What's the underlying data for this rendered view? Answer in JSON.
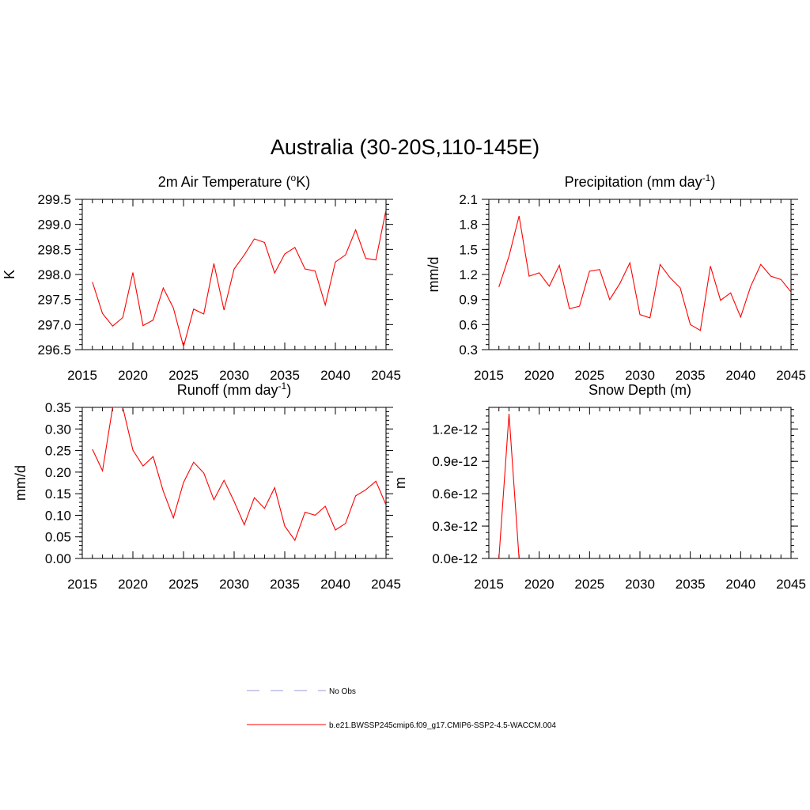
{
  "figure": {
    "title": "Australia (30-20S,110-145E)"
  },
  "colors": {
    "model_line": "#ff0000",
    "obs_line": "#9999dd",
    "axis": "#000000"
  },
  "legend": {
    "placement": "bottom-center",
    "items": [
      {
        "label": "No Obs",
        "style": "dashed",
        "color": "#9999dd"
      },
      {
        "label": "b.e21.BWSSP245cmip6.f09_g17.CMIP6-SSP2-4.5-WACCM.004",
        "style": "solid",
        "color": "#ff0000"
      }
    ]
  },
  "chart_data": [
    {
      "type": "line",
      "title_main": "2m Air Temperature (",
      "title_sup": "o",
      "title_rest": "K)",
      "xlabel": "",
      "ylabel": "K",
      "xlim": [
        2015,
        2045
      ],
      "ylim": [
        296.5,
        299.5
      ],
      "xticks": [
        2015,
        2020,
        2025,
        2030,
        2035,
        2040,
        2045
      ],
      "yticks": [
        296.5,
        297.0,
        297.5,
        298.0,
        298.5,
        299.0,
        299.5
      ],
      "ytick_labels": [
        "296.5",
        "297.0",
        "297.5",
        "298.0",
        "298.5",
        "299.0",
        "299.5"
      ],
      "x": [
        2016,
        2017,
        2018,
        2019,
        2020,
        2021,
        2022,
        2023,
        2024,
        2025,
        2026,
        2027,
        2028,
        2029,
        2030,
        2031,
        2032,
        2033,
        2034,
        2035,
        2036,
        2037,
        2038,
        2039,
        2040,
        2041,
        2042,
        2043,
        2044,
        2045
      ],
      "y": [
        297.85,
        297.22,
        296.97,
        297.14,
        298.04,
        296.98,
        297.09,
        297.73,
        297.33,
        296.56,
        297.31,
        297.21,
        298.22,
        297.29,
        298.11,
        298.39,
        298.71,
        298.64,
        298.03,
        298.41,
        298.54,
        298.11,
        298.07,
        297.39,
        298.25,
        298.39,
        298.89,
        298.32,
        298.29,
        299.29
      ]
    },
    {
      "type": "line",
      "title_main": "Precipitation (mm day",
      "title_sup": "-1",
      "title_rest": ")",
      "xlabel": "",
      "ylabel": "mm/d",
      "xlim": [
        2015,
        2045
      ],
      "ylim": [
        0.3,
        2.1
      ],
      "xticks": [
        2015,
        2020,
        2025,
        2030,
        2035,
        2040,
        2045
      ],
      "yticks": [
        0.3,
        0.6,
        0.9,
        1.2,
        1.5,
        1.8,
        2.1
      ],
      "ytick_labels": [
        "0.3",
        "0.6",
        "0.9",
        "1.2",
        "1.5",
        "1.8",
        "2.1"
      ],
      "x": [
        2016,
        2017,
        2018,
        2019,
        2020,
        2021,
        2022,
        2023,
        2024,
        2025,
        2026,
        2027,
        2028,
        2029,
        2030,
        2031,
        2032,
        2033,
        2034,
        2035,
        2036,
        2037,
        2038,
        2039,
        2040,
        2041,
        2042,
        2043,
        2044,
        2045
      ],
      "y": [
        1.05,
        1.42,
        1.9,
        1.18,
        1.22,
        1.06,
        1.31,
        0.79,
        0.82,
        1.24,
        1.26,
        0.9,
        1.09,
        1.34,
        0.72,
        0.68,
        1.32,
        1.16,
        1.04,
        0.6,
        0.53,
        1.3,
        0.89,
        0.98,
        0.69,
        1.06,
        1.32,
        1.18,
        1.14,
        0.99
      ]
    },
    {
      "type": "line",
      "title_main": "Runoff (mm day",
      "title_sup": "-1",
      "title_rest": ")",
      "xlabel": "",
      "ylabel": "mm/d",
      "xlim": [
        2015,
        2045
      ],
      "ylim": [
        0.0,
        0.35
      ],
      "xticks": [
        2015,
        2020,
        2025,
        2030,
        2035,
        2040,
        2045
      ],
      "yticks": [
        0.0,
        0.05,
        0.1,
        0.15,
        0.2,
        0.25,
        0.3,
        0.35
      ],
      "ytick_labels": [
        "0.00",
        "0.05",
        "0.10",
        "0.15",
        "0.20",
        "0.25",
        "0.30",
        "0.35"
      ],
      "x": [
        2016,
        2017,
        2018,
        2019,
        2020,
        2021,
        2022,
        2023,
        2024,
        2025,
        2026,
        2027,
        2028,
        2029,
        2030,
        2031,
        2032,
        2033,
        2034,
        2035,
        2036,
        2037,
        2038,
        2039,
        2040,
        2041,
        2042,
        2043,
        2044,
        2045
      ],
      "y": [
        0.253,
        0.203,
        0.35,
        0.35,
        0.251,
        0.214,
        0.236,
        0.156,
        0.094,
        0.176,
        0.223,
        0.198,
        0.136,
        0.181,
        0.132,
        0.078,
        0.141,
        0.116,
        0.164,
        0.075,
        0.042,
        0.107,
        0.1,
        0.121,
        0.066,
        0.081,
        0.145,
        0.159,
        0.179,
        0.124
      ]
    },
    {
      "type": "line",
      "title_main": "Snow Depth (m)",
      "title_sup": "",
      "title_rest": "",
      "xlabel": "",
      "ylabel": "m",
      "xlim": [
        2015,
        2045
      ],
      "ylim": [
        0.0,
        1.4e-12
      ],
      "xticks": [
        2015,
        2020,
        2025,
        2030,
        2035,
        2040,
        2045
      ],
      "yticks": [
        0.0,
        3e-13,
        6e-13,
        9e-13,
        1.2e-12
      ],
      "ytick_labels": [
        "0.0e-12",
        "0.3e-12",
        "0.6e-12",
        "0.9e-12",
        "1.2e-12"
      ],
      "x": [
        2016,
        2017,
        2018
      ],
      "y": [
        0.0,
        1.34e-12,
        0.0
      ]
    }
  ]
}
